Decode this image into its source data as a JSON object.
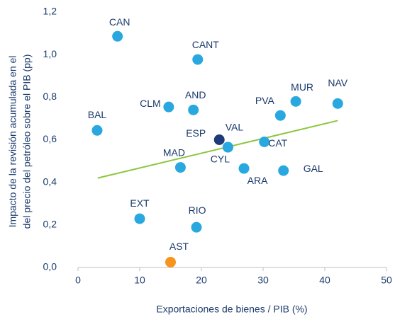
{
  "chart_data": {
    "type": "scatter",
    "x_label": "Exportaciones de bienes / PIB (%)",
    "y_label": [
      "Impacto de la revisión acumulada en el",
      "del precio del petróleo sobre el PIB (pp)"
    ],
    "series": [
      {
        "labels": [
          "CAN",
          "CANT",
          "MUR",
          "NAV",
          "PVA",
          "CLM",
          "AND",
          "BAL",
          "ESP",
          "VAL",
          "CAT",
          "CYL",
          "MAD",
          "ARA",
          "GAL",
          "EXT",
          "RIO",
          "AST"
        ],
        "x": [
          6.4,
          19.4,
          35.3,
          42.1,
          32.8,
          14.7,
          18.7,
          3.1,
          22.9,
          24.3,
          30.2,
          24.3,
          16.6,
          26.9,
          33.3,
          10.0,
          19.2,
          15.0
        ],
        "values": [
          1.086,
          0.977,
          0.78,
          0.77,
          0.714,
          0.754,
          0.74,
          0.644,
          0.6,
          0.565,
          0.59,
          0.565,
          0.47,
          0.465,
          0.455,
          0.229,
          0.189,
          0.025
        ],
        "colors": [
          "#29a8e0",
          "#29a8e0",
          "#29a8e0",
          "#29a8e0",
          "#29a8e0",
          "#29a8e0",
          "#29a8e0",
          "#29a8e0",
          "#1f3a78",
          "#29a8e0",
          "#29a8e0",
          "#29a8e0",
          "#29a8e0",
          "#29a8e0",
          "#29a8e0",
          "#29a8e0",
          "#29a8e0",
          "#f7941d"
        ]
      }
    ],
    "trendline": {
      "x": [
        3.2,
        42.1
      ],
      "values": [
        0.42,
        0.69
      ],
      "color": "#8dc63f"
    },
    "xlim": [
      0,
      50
    ],
    "xticks": [
      0,
      10,
      20,
      30,
      40,
      50
    ],
    "ylim": [
      0,
      1.2
    ],
    "yticks": [
      {
        "value": 0,
        "label": "0,0"
      },
      {
        "value": 0.2,
        "label": "0,2"
      },
      {
        "value": 0.4,
        "label": "0,4"
      },
      {
        "value": 0.6,
        "label": "0,6"
      },
      {
        "value": 0.8,
        "label": "0,8"
      },
      {
        "value": 1.0,
        "label": "1,0"
      },
      {
        "value": 1.2,
        "label": "1,2"
      }
    ]
  }
}
